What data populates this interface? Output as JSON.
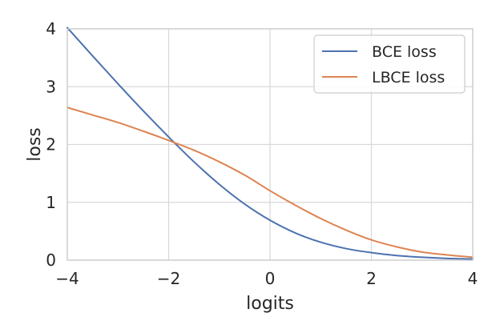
{
  "chart_data": {
    "type": "line",
    "title": "",
    "xlabel": "logits",
    "ylabel": "loss",
    "xlim": [
      -4,
      4
    ],
    "ylim": [
      0,
      4
    ],
    "xticks": [
      -4,
      -2,
      0,
      2,
      4
    ],
    "xtick_labels": [
      "−4",
      "−2",
      "0",
      "2",
      "4"
    ],
    "yticks": [
      0,
      1,
      2,
      3,
      4
    ],
    "ytick_labels": [
      "0",
      "1",
      "2",
      "3",
      "4"
    ],
    "grid": true,
    "legend_position": "top-right",
    "series": [
      {
        "name": "BCE loss",
        "color": "#4c72b0",
        "x": [
          -4,
          -3.5,
          -3,
          -2.5,
          -2,
          -1.5,
          -1,
          -0.5,
          0,
          0.5,
          1,
          1.5,
          2,
          2.5,
          3,
          3.5,
          4
        ],
        "y": [
          4.02,
          3.53,
          3.05,
          2.58,
          2.13,
          1.7,
          1.31,
          0.97,
          0.69,
          0.47,
          0.31,
          0.2,
          0.13,
          0.08,
          0.05,
          0.03,
          0.02
        ]
      },
      {
        "name": "LBCE loss",
        "color": "#dd8452",
        "x": [
          -4,
          -3.5,
          -3,
          -2.5,
          -2,
          -1.5,
          -1,
          -0.5,
          0,
          0.5,
          1,
          1.5,
          2,
          2.5,
          3,
          3.5,
          4
        ],
        "y": [
          2.64,
          2.51,
          2.38,
          2.23,
          2.07,
          1.9,
          1.7,
          1.47,
          1.2,
          0.95,
          0.72,
          0.52,
          0.35,
          0.23,
          0.14,
          0.09,
          0.05
        ]
      }
    ]
  }
}
